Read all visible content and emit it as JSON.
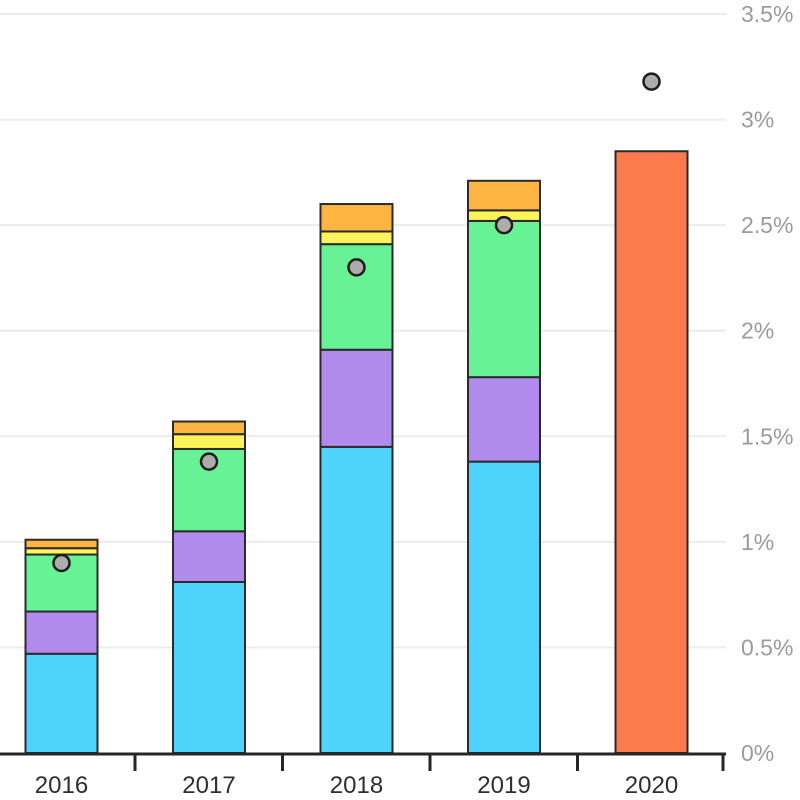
{
  "chart_data": {
    "type": "bar",
    "subtype": "stacked-bar-with-dot-markers",
    "title": "",
    "xlabel": "",
    "ylabel": "",
    "x_categories": [
      "2016",
      "2017",
      "2018",
      "2019",
      "2020"
    ],
    "y_axis": {
      "side": "right",
      "unit": "%",
      "min": 0,
      "max": 3.5,
      "tick_values": [
        0,
        0.5,
        1,
        1.5,
        2,
        2.5,
        3,
        3.5
      ],
      "tick_labels": [
        "0%",
        "0.5%",
        "1%",
        "1.5%",
        "2%",
        "2.5%",
        "3%",
        "3.5%"
      ]
    },
    "grid": true,
    "legend": "none",
    "series": [
      {
        "name": "segment-cyan",
        "color": "#4DD3FC",
        "values": [
          0.47,
          0.81,
          1.45,
          1.38,
          0
        ]
      },
      {
        "name": "segment-purple",
        "color": "#B18AEE",
        "values": [
          0.2,
          0.24,
          0.46,
          0.4,
          0
        ]
      },
      {
        "name": "segment-green",
        "color": "#66F295",
        "values": [
          0.27,
          0.39,
          0.5,
          0.74,
          0
        ]
      },
      {
        "name": "segment-yellow",
        "color": "#FDF35B",
        "values": [
          0.03,
          0.07,
          0.06,
          0.05,
          0
        ]
      },
      {
        "name": "segment-orange",
        "color": "#FDB440",
        "values": [
          0.04,
          0.06,
          0.13,
          0.14,
          0
        ]
      },
      {
        "name": "segment-coral",
        "color": "#FD7A4D",
        "values": [
          0,
          0,
          0,
          0,
          2.85
        ]
      }
    ],
    "stack_totals": [
      1.01,
      1.57,
      2.6,
      2.71,
      2.85
    ],
    "dot_series": {
      "name": "gray-dot-marker",
      "fill": "#ACACAC",
      "stroke": "#1C1C1C",
      "values": [
        0.9,
        1.38,
        2.3,
        2.5,
        3.18
      ]
    },
    "colors": {
      "bar_outline": "#2B2B2B",
      "axis_line": "#262626",
      "grid_line": "#ECECEC",
      "y_tick_label": "#9B9B9B",
      "x_tick_label": "#2F2F2F",
      "background": "#FFFFFF"
    }
  }
}
